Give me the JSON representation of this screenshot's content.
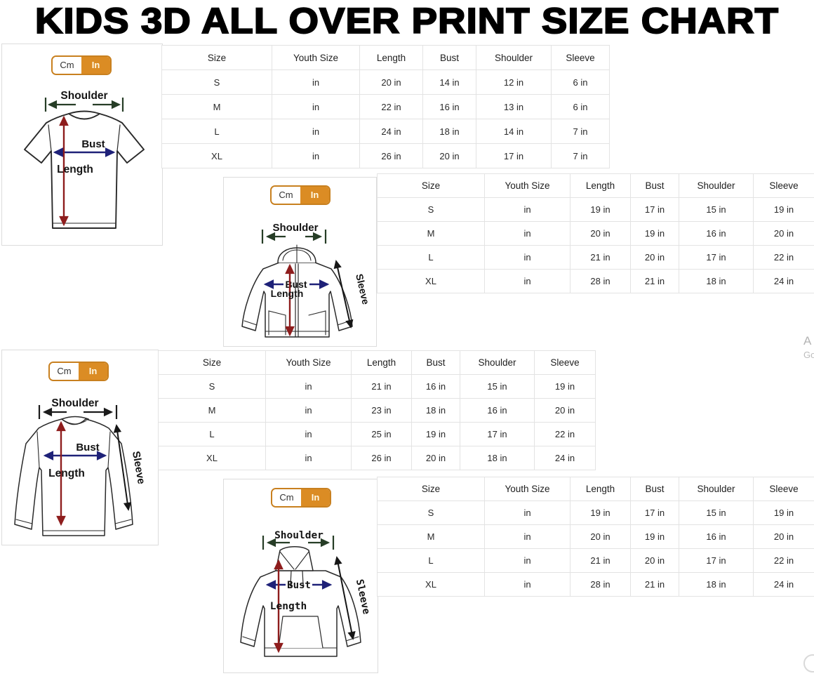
{
  "title": "KIDS 3D ALL OVER PRINT SIZE CHART",
  "unit_toggle": {
    "cm_label": "Cm",
    "in_label": "In",
    "selected": "In"
  },
  "diagram_labels": {
    "shoulder": "Shoulder",
    "bust": "Bust",
    "length": "Length",
    "sleeve": "Sleeve"
  },
  "table_headers": [
    "Size",
    "Youth Size",
    "Length",
    "Bust",
    "Shoulder",
    "Sleeve"
  ],
  "sections": [
    {
      "garment": "t-shirt",
      "rows": [
        [
          "S",
          "in",
          "20 in",
          "14 in",
          "12 in",
          "6 in"
        ],
        [
          "M",
          "in",
          "22 in",
          "16 in",
          "13 in",
          "6 in"
        ],
        [
          "L",
          "in",
          "24 in",
          "18 in",
          "14 in",
          "7 in"
        ],
        [
          "XL",
          "in",
          "26 in",
          "20 in",
          "17 in",
          "7 in"
        ]
      ]
    },
    {
      "garment": "zip-up-hoodie",
      "rows": [
        [
          "S",
          "in",
          "19 in",
          "17 in",
          "15 in",
          "19 in"
        ],
        [
          "M",
          "in",
          "20 in",
          "19 in",
          "16 in",
          "20 in"
        ],
        [
          "L",
          "in",
          "21 in",
          "20 in",
          "17 in",
          "22 in"
        ],
        [
          "XL",
          "in",
          "28 in",
          "21 in",
          "18 in",
          "24 in"
        ]
      ]
    },
    {
      "garment": "long-sleeve-shirt",
      "rows": [
        [
          "S",
          "in",
          "21 in",
          "16 in",
          "15 in",
          "19 in"
        ],
        [
          "M",
          "in",
          "23 in",
          "18 in",
          "16 in",
          "20 in"
        ],
        [
          "L",
          "in",
          "25 in",
          "19 in",
          "17 in",
          "22 in"
        ],
        [
          "XL",
          "in",
          "26 in",
          "20 in",
          "18 in",
          "24 in"
        ]
      ]
    },
    {
      "garment": "pullover-hoodie",
      "rows": [
        [
          "S",
          "in",
          "19 in",
          "17 in",
          "15 in",
          "19 in"
        ],
        [
          "M",
          "in",
          "20 in",
          "19 in",
          "16 in",
          "20 in"
        ],
        [
          "L",
          "in",
          "21 in",
          "20 in",
          "17 in",
          "22 in"
        ],
        [
          "XL",
          "in",
          "28 in",
          "21 in",
          "18 in",
          "24 in"
        ]
      ]
    }
  ],
  "colors": {
    "accent_orange": "#DB8C24",
    "toggle_border": "#C8801F",
    "length_arrow_red": "#8E1D1D",
    "bust_arrow_navy": "#1E2178",
    "shoulder_arrow_green": "#263D26",
    "sleeve_arrow_black": "#161616",
    "table_border": "#E3E3E3"
  },
  "edge_fragments": {
    "line1": "A",
    "line2": "Go"
  }
}
